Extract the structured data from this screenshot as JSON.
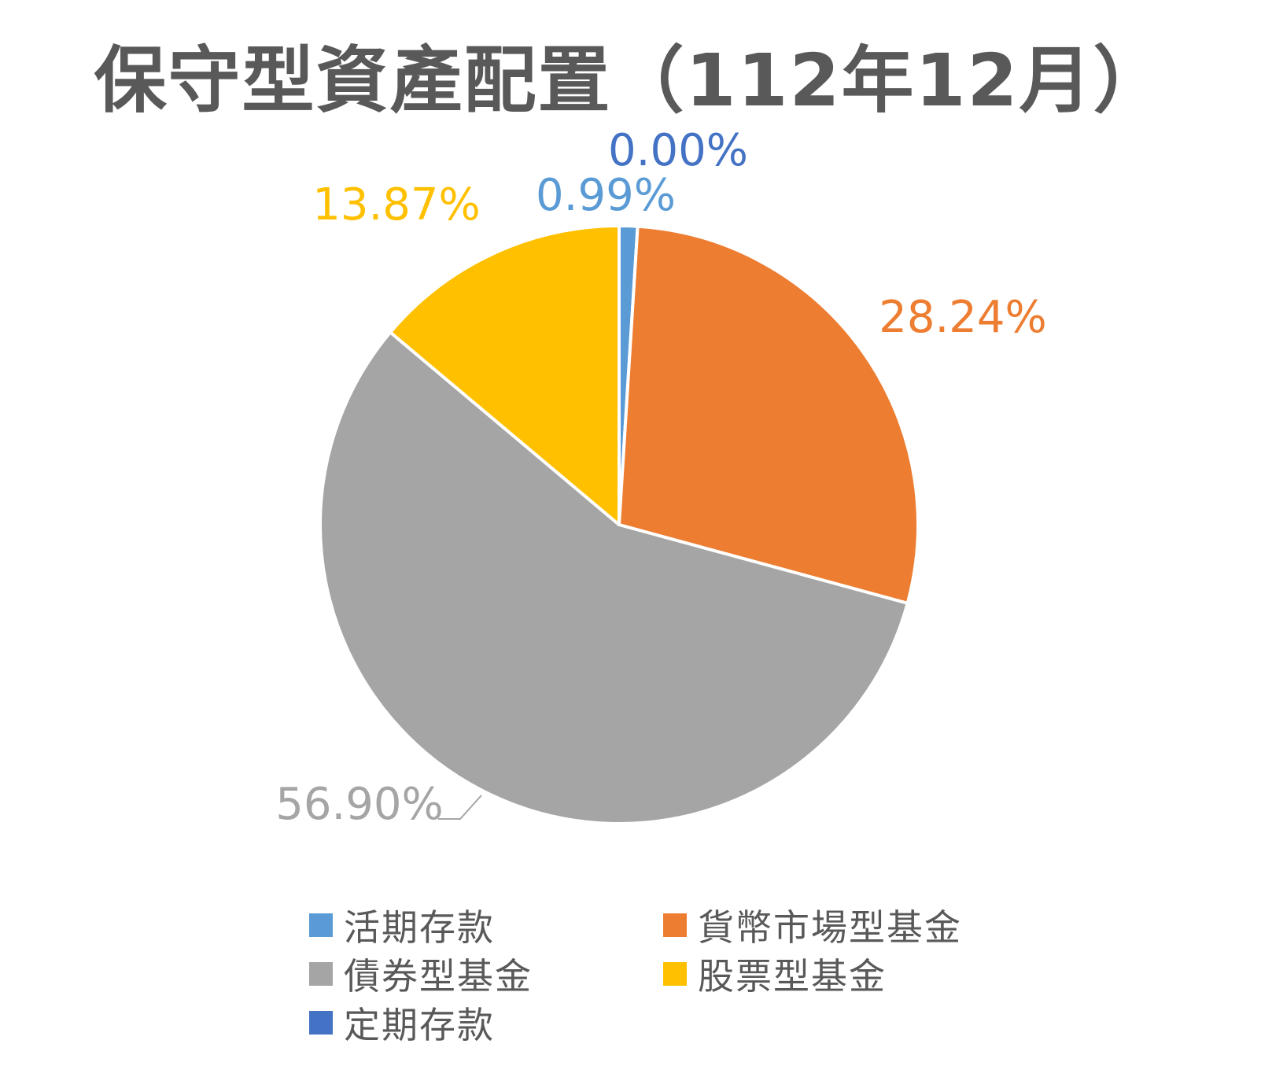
{
  "chart_data": {
    "type": "pie",
    "title": "保守型資產配置（112年12月）",
    "slices": [
      {
        "name": "活期存款",
        "value": 0.99,
        "label": "0.99%",
        "color": "#5B9BD5"
      },
      {
        "name": "貨幣市場型基金",
        "value": 28.24,
        "label": "28.24%",
        "color": "#ED7D31"
      },
      {
        "name": "債券型基金",
        "value": 56.9,
        "label": "56.90%",
        "color": "#A5A5A5"
      },
      {
        "name": "股票型基金",
        "value": 13.87,
        "label": "13.87%",
        "color": "#FFC000"
      },
      {
        "name": "定期存款",
        "value": 0.0,
        "label": "0.00%",
        "color": "#4472C4"
      }
    ],
    "legend_position": "bottom"
  }
}
